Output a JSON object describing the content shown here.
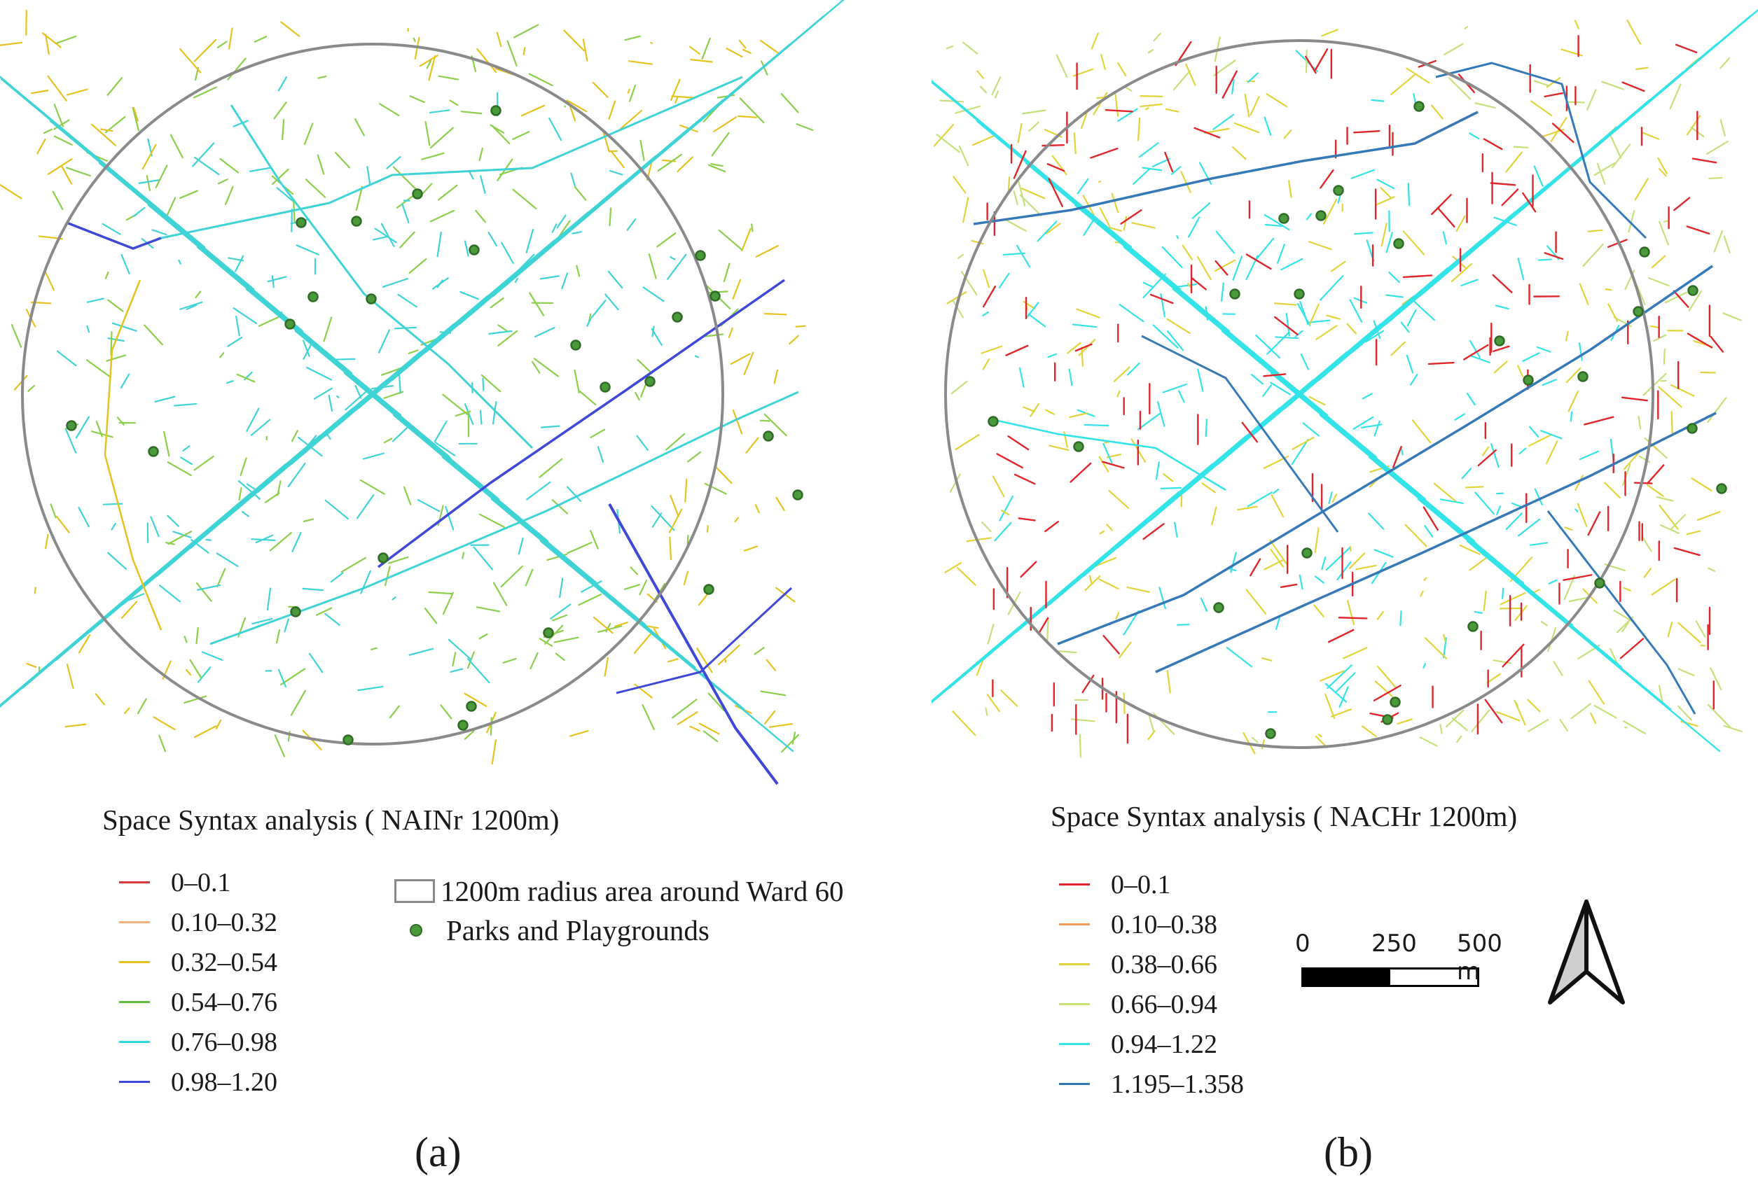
{
  "panel_a": {
    "title": "Space Syntax analysis ( NAINr 1200m)",
    "label": "(a)",
    "legend": [
      {
        "label": "0–0.1",
        "color": "#d63a3a"
      },
      {
        "label": "0.10–0.32",
        "color": "#f2b57c"
      },
      {
        "label": "0.32–0.54",
        "color": "#e6c21e"
      },
      {
        "label": "0.54–0.76",
        "color": "#5bbf3c"
      },
      {
        "label": "0.76–0.98",
        "color": "#2fd8dc"
      },
      {
        "label": "0.98–1.20",
        "color": "#4048d8"
      }
    ],
    "ward_legend": "1200m radius area around Ward 60",
    "parks_legend": "Parks and Playgrounds"
  },
  "panel_b": {
    "title": "Space Syntax analysis  ( NACHr 1200m)",
    "label": "(b)",
    "legend": [
      {
        "label": "0–0.1",
        "color": "#e0262a"
      },
      {
        "label": "0.10–0.38",
        "color": "#f59a5a"
      },
      {
        "label": "0.38–0.66",
        "color": "#e3d33a"
      },
      {
        "label": "0.66–0.94",
        "color": "#c6e07a"
      },
      {
        "label": "0.94–1.22",
        "color": "#33e3e8"
      },
      {
        "label": "1.195–1.358",
        "color": "#3579b8"
      }
    ]
  },
  "scalebar": {
    "labels": [
      "0",
      "250",
      "500 m"
    ]
  },
  "colors": {
    "circle": "#8a8a8a",
    "park": "#4a9a3c",
    "park_outline": "#2e6b25"
  }
}
